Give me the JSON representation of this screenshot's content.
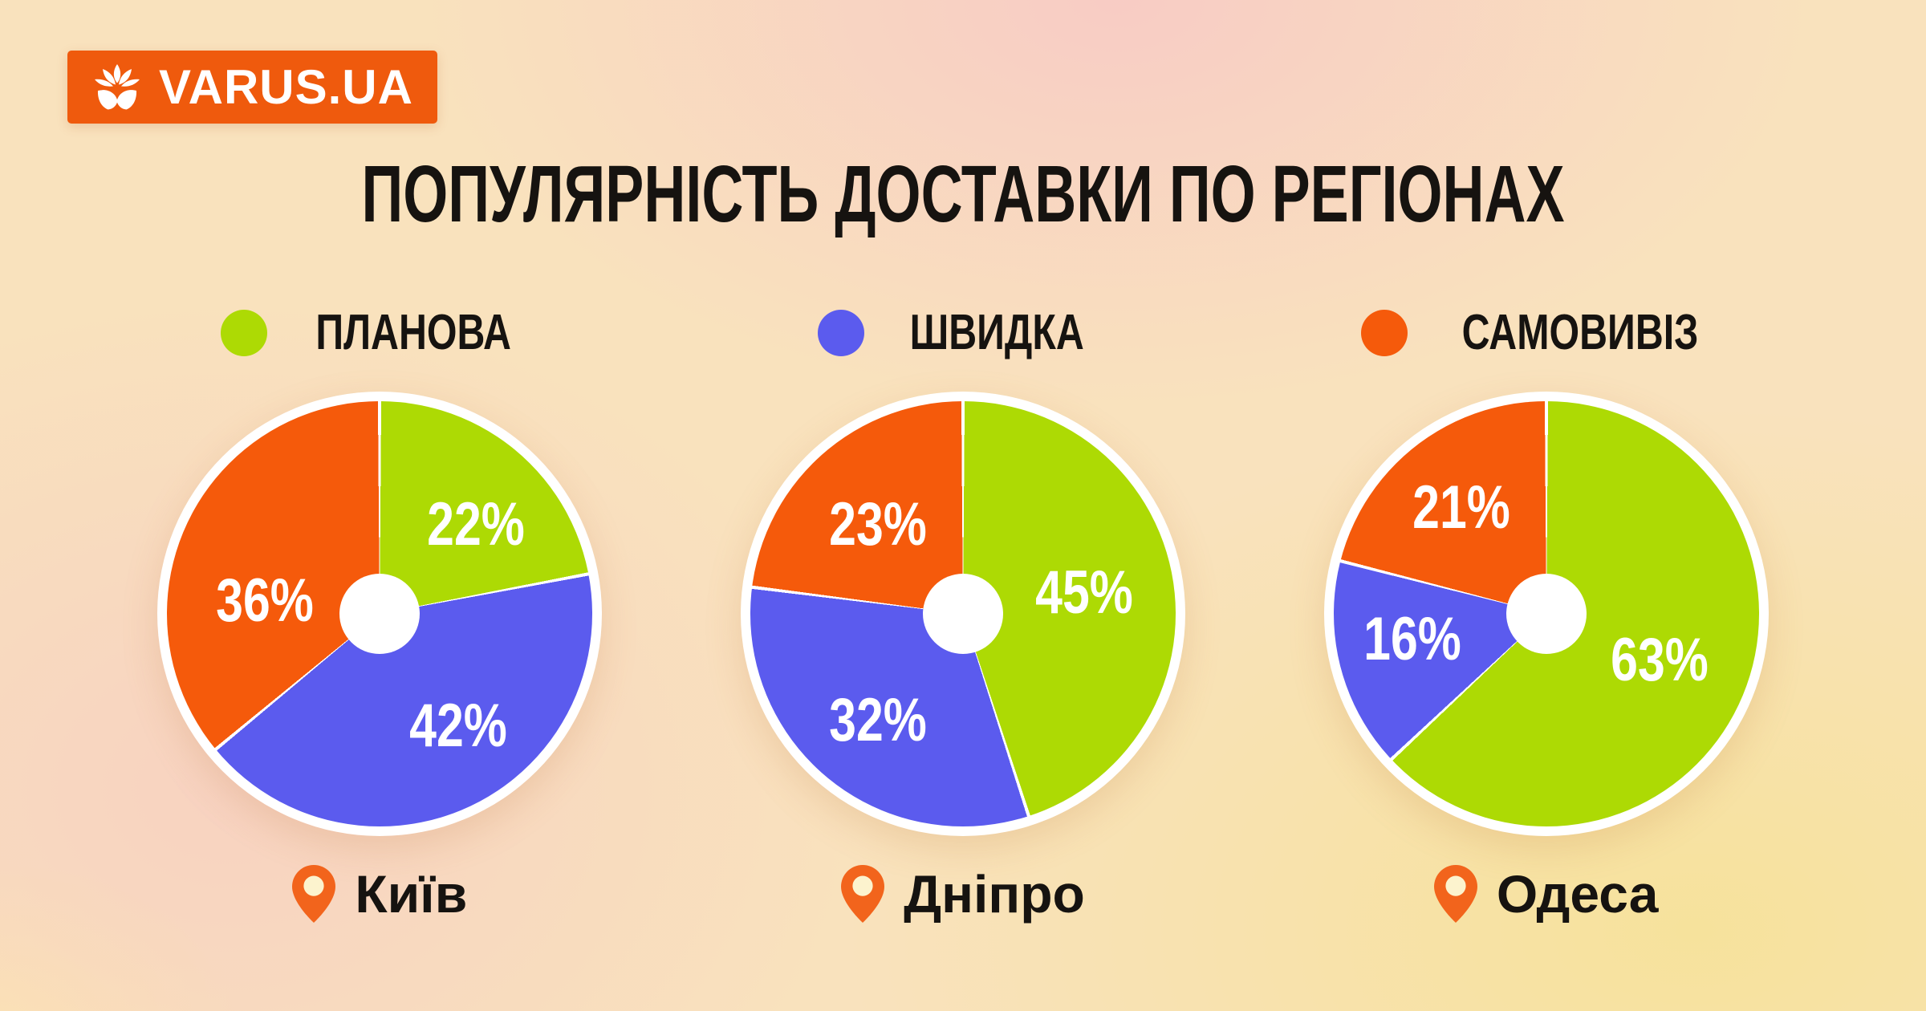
{
  "logo": {
    "text": "VARUS.UA",
    "background": "#EF5A0D"
  },
  "title": "ПОПУЛЯРНІСТЬ ДОСТАВКИ ПО РЕГІОНАХ",
  "legend": [
    {
      "label": "ПЛАНОВА",
      "color": "#ADDA04"
    },
    {
      "label": "ШВИДКА",
      "color": "#5B5BEE"
    },
    {
      "label": "САМОВИВІЗ",
      "color": "#F55A0B"
    }
  ],
  "colors": {
    "accent_orange": "#EF5A0D",
    "pin_orange": "#F2641C",
    "pin_inner": "#FCF3CE",
    "text": "#161310",
    "pie_ring": "#FFFFFF"
  },
  "chart_data": [
    {
      "type": "pie",
      "title": "Київ",
      "categories": [
        "ПЛАНОВА",
        "ШВИДКА",
        "САМОВИВІЗ"
      ],
      "values": [
        22,
        42,
        36
      ],
      "unit": "%",
      "colors": [
        "#ADDA04",
        "#5B5BEE",
        "#F55A0B"
      ],
      "start_angle_deg": 0,
      "direction": "clockwise",
      "donut_hole_ratio": 0.19,
      "labels_inside": true,
      "label_pos": [
        [
          72.5,
          29
        ],
        [
          68.5,
          76.5
        ],
        [
          23,
          47
        ]
      ]
    },
    {
      "type": "pie",
      "title": "Дніпро",
      "categories": [
        "ПЛАНОВА",
        "ШВИДКА",
        "САМОВИВІЗ"
      ],
      "values": [
        45,
        32,
        23
      ],
      "unit": "%",
      "colors": [
        "#ADDA04",
        "#5B5BEE",
        "#F55A0B"
      ],
      "start_angle_deg": 0,
      "direction": "clockwise",
      "donut_hole_ratio": 0.19,
      "labels_inside": true,
      "label_pos": [
        [
          78.5,
          45
        ],
        [
          30,
          75
        ],
        [
          30,
          29
        ]
      ]
    },
    {
      "type": "pie",
      "title": "Одеса",
      "categories": [
        "ПЛАНОВА",
        "ШВИДКА",
        "САМОВИВІЗ"
      ],
      "values": [
        63,
        16,
        21
      ],
      "unit": "%",
      "colors": [
        "#ADDA04",
        "#5B5BEE",
        "#F55A0B"
      ],
      "start_angle_deg": 0,
      "direction": "clockwise",
      "donut_hole_ratio": 0.19,
      "labels_inside": true,
      "label_pos": [
        [
          76.6,
          61
        ],
        [
          18.5,
          56
        ],
        [
          30,
          25
        ]
      ]
    }
  ]
}
